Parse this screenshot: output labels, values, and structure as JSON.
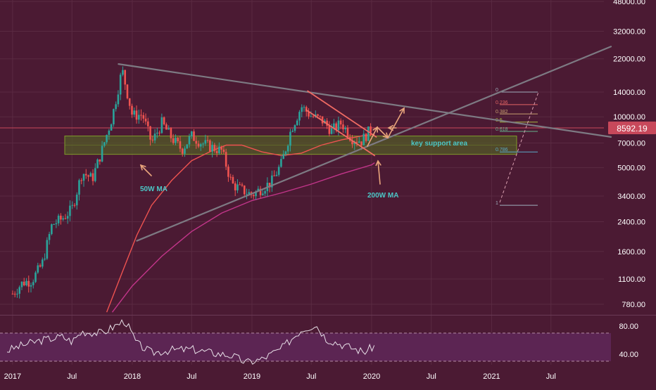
{
  "chart_data": [
    {
      "type": "candlestick",
      "title": "",
      "y_scale": "log",
      "ylim": [
        700,
        50000
      ],
      "xlim": [
        "2016-12-15",
        "2021-12-31"
      ],
      "price_ticks": [
        "48000.00",
        "32000.00",
        "22000.00",
        "14000.00",
        "10000.00",
        "7000.00",
        "5000.00",
        "3400.00",
        "2400.00",
        "1600.00",
        "1100.00",
        "780.00"
      ],
      "price_tick_values": [
        48000,
        32000,
        22000,
        14000,
        10000,
        7000,
        5000,
        3400,
        2400,
        1600,
        1100,
        780
      ],
      "x_ticks": [
        {
          "label": "2017",
          "date": "2017-01-01"
        },
        {
          "label": "Jul",
          "date": "2017-07-01"
        },
        {
          "label": "2018",
          "date": "2018-01-01"
        },
        {
          "label": "Jul",
          "date": "2018-07-01"
        },
        {
          "label": "2019",
          "date": "2019-01-01"
        },
        {
          "label": "Jul",
          "date": "2019-07-01"
        },
        {
          "label": "2020",
          "date": "2020-01-01"
        },
        {
          "label": "Jul",
          "date": "2020-07-01"
        },
        {
          "label": "2021",
          "date": "2021-01-01"
        },
        {
          "label": "Jul",
          "date": "2021-07-01"
        }
      ],
      "last_price": {
        "label": "8592.19",
        "value": 8592.19
      },
      "close_series": [
        [
          "2017-01-01",
          900
        ],
        [
          "2017-02-01",
          1050
        ],
        [
          "2017-03-01",
          1080
        ],
        [
          "2017-04-01",
          1350
        ],
        [
          "2017-05-01",
          2300
        ],
        [
          "2017-06-01",
          2500
        ],
        [
          "2017-07-01",
          2850
        ],
        [
          "2017-08-01",
          4700
        ],
        [
          "2017-09-01",
          4300
        ],
        [
          "2017-10-01",
          6400
        ],
        [
          "2017-11-01",
          10000
        ],
        [
          "2017-12-01",
          19000
        ],
        [
          "2018-01-01",
          10200
        ],
        [
          "2018-02-01",
          10300
        ],
        [
          "2018-03-01",
          7000
        ],
        [
          "2018-04-01",
          9200
        ],
        [
          "2018-05-01",
          7500
        ],
        [
          "2018-06-01",
          6400
        ],
        [
          "2018-07-01",
          7700
        ],
        [
          "2018-08-01",
          7000
        ],
        [
          "2018-09-01",
          6600
        ],
        [
          "2018-10-01",
          6300
        ],
        [
          "2018-11-01",
          4000
        ],
        [
          "2018-12-01",
          3700
        ],
        [
          "2019-01-01",
          3450
        ],
        [
          "2019-02-01",
          3800
        ],
        [
          "2019-03-01",
          4100
        ],
        [
          "2019-04-01",
          5300
        ],
        [
          "2019-05-01",
          8500
        ],
        [
          "2019-06-01",
          11500
        ],
        [
          "2019-07-01",
          10100
        ],
        [
          "2019-08-01",
          9600
        ],
        [
          "2019-09-01",
          8300
        ],
        [
          "2019-10-01",
          9200
        ],
        [
          "2019-11-01",
          7500
        ],
        [
          "2019-12-01",
          7200
        ],
        [
          "2020-01-01",
          8592
        ]
      ],
      "ma50_label": "50W MA",
      "ma50_series": [
        [
          "2017-10-15",
          700
        ],
        [
          "2017-12-01",
          1200
        ],
        [
          "2018-01-15",
          2000
        ],
        [
          "2018-03-01",
          3000
        ],
        [
          "2018-05-01",
          4200
        ],
        [
          "2018-07-01",
          5500
        ],
        [
          "2018-09-01",
          6300
        ],
        [
          "2018-10-15",
          6800
        ],
        [
          "2018-12-01",
          6800
        ],
        [
          "2019-02-01",
          6200
        ],
        [
          "2019-04-01",
          5900
        ],
        [
          "2019-06-01",
          6100
        ],
        [
          "2019-08-01",
          6800
        ],
        [
          "2019-10-01",
          7300
        ],
        [
          "2019-12-01",
          7700
        ],
        [
          "2020-01-10",
          7900
        ]
      ],
      "ma200_label": "200W MA",
      "ma200_series": [
        [
          "2017-11-01",
          700
        ],
        [
          "2018-01-01",
          1000
        ],
        [
          "2018-04-01",
          1500
        ],
        [
          "2018-07-01",
          2100
        ],
        [
          "2018-10-01",
          2700
        ],
        [
          "2019-01-01",
          3200
        ],
        [
          "2019-04-01",
          3550
        ],
        [
          "2019-07-01",
          4000
        ],
        [
          "2019-10-01",
          4600
        ],
        [
          "2020-01-01",
          5200
        ],
        [
          "2020-01-10",
          5350
        ]
      ],
      "trendlines": [
        {
          "name": "descending-resistance",
          "points": [
            [
              "2017-11-20",
              20500
            ],
            [
              "2021-12-31",
              7600
            ]
          ]
        },
        {
          "name": "ascending-support",
          "points": [
            [
              "2018-01-15",
              1850
            ],
            [
              "2021-12-31",
              26000
            ]
          ]
        },
        {
          "name": "channel-upper",
          "points": [
            [
              "2019-06-20",
              14200
            ],
            [
              "2020-01-15",
              7600
            ]
          ]
        },
        {
          "name": "channel-lower",
          "points": [
            [
              "2019-06-15",
              11000
            ],
            [
              "2020-01-10",
              5900
            ]
          ]
        }
      ],
      "support_zone": {
        "label": "key support area",
        "y1": 6000,
        "y2": 7700,
        "x1": "2017-09-20",
        "x2": "2020-12-31"
      },
      "fibonacci": {
        "x1": "2020-11-15",
        "x2": "2021-03-30",
        "levels": [
          {
            "label": "0",
            "value": 14000,
            "color": "#9fb0be"
          },
          {
            "label": "0.236",
            "value": 11800,
            "color": "#e46464"
          },
          {
            "label": "0.382",
            "value": 10400,
            "color": "#c8a070"
          },
          {
            "label": "0.5",
            "value": 9300,
            "color": "#a6b53f"
          },
          {
            "label": "0.618",
            "value": 8200,
            "color": "#66b28c"
          },
          {
            "label": "0.786",
            "value": 6200,
            "color": "#5aa9c9"
          },
          {
            "label": "1",
            "value": 3000,
            "color": "#9fb0be"
          }
        ]
      },
      "rsi": {
        "ticks": [
          "80.00",
          "40.00"
        ],
        "tick_values": [
          80,
          40
        ],
        "band": [
          30,
          70
        ],
        "series": [
          [
            "2016-12-15",
            45
          ],
          [
            "2017-02-01",
            53
          ],
          [
            "2017-04-01",
            60
          ],
          [
            "2017-06-01",
            65
          ],
          [
            "2017-07-01",
            58
          ],
          [
            "2017-08-01",
            72
          ],
          [
            "2017-10-01",
            70
          ],
          [
            "2017-12-10",
            88
          ],
          [
            "2018-01-15",
            55
          ],
          [
            "2018-03-01",
            42
          ],
          [
            "2018-05-01",
            46
          ],
          [
            "2018-07-01",
            47
          ],
          [
            "2018-09-01",
            42
          ],
          [
            "2018-11-01",
            38
          ],
          [
            "2018-12-15",
            28
          ],
          [
            "2019-02-01",
            33
          ],
          [
            "2019-04-01",
            48
          ],
          [
            "2019-06-01",
            75
          ],
          [
            "2019-07-15",
            82
          ],
          [
            "2019-08-15",
            62
          ],
          [
            "2019-10-01",
            54
          ],
          [
            "2019-11-01",
            49
          ],
          [
            "2019-12-10",
            43
          ],
          [
            "2020-01-10",
            52
          ]
        ]
      },
      "colors": {
        "background": "#4b1a33",
        "up": "#2aa39a",
        "down": "#ef5350",
        "ma50": "#ef5350",
        "ma200": "#c2358a",
        "trendline": "#7d7a83",
        "channel": "#f06a63",
        "arrow": "#e9a57c",
        "annotation": "#4bc7c7",
        "support_fill": "#525a28",
        "price_line": "#c8485b",
        "rsi_fill": "#5c2553",
        "axis_text": "#ffffff"
      }
    }
  ]
}
